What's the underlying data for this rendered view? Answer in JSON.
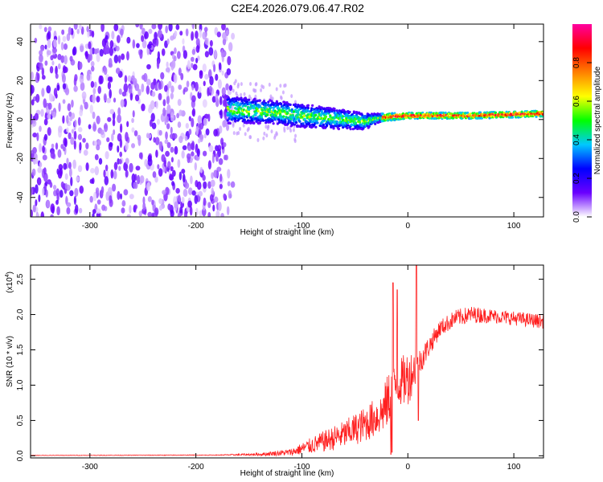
{
  "title": "C2E4.2026.079.06.47.R02",
  "chart_data": [
    {
      "type": "heatmap",
      "name": "spectrogram",
      "title": "C2E4.2026.079.06.47.R02",
      "xlabel": "Height of straight line (km)",
      "ylabel": "Frequency (Hz)",
      "xlim": [
        -356,
        128
      ],
      "ylim": [
        -50,
        49
      ],
      "xticks": [
        -300,
        -200,
        -100,
        0,
        100
      ],
      "yticks": [
        -40,
        -20,
        0,
        20,
        40
      ],
      "description_of_structure": {
        "noise_region_x": [
          -356,
          -165
        ],
        "signal_band": [
          {
            "x": -170,
            "freq": 5,
            "spread": 7
          },
          {
            "x": -130,
            "freq": 4,
            "spread": 6
          },
          {
            "x": -100,
            "freq": 2,
            "spread": 6
          },
          {
            "x": -60,
            "freq": 0,
            "spread": 5
          },
          {
            "x": -40,
            "freq": -1,
            "spread": 4
          },
          {
            "x": -25,
            "freq": 1,
            "spread": 2
          },
          {
            "x": 0,
            "freq": 2,
            "spread": 1.5
          },
          {
            "x": 60,
            "freq": 2,
            "spread": 1.5
          },
          {
            "x": 128,
            "freq": 3,
            "spread": 1.5
          }
        ]
      },
      "colorbar": {
        "label": "Normalized spectral amplitude",
        "range": [
          0.0,
          1.0
        ],
        "ticks": [
          "0.0",
          "0.2",
          "0.4",
          "0.6",
          "0.8"
        ],
        "tick_values": [
          0.0,
          0.2,
          0.4,
          0.6,
          0.8
        ],
        "colors": [
          "#ffffff",
          "#6a00ff",
          "#0000ff",
          "#00c8ff",
          "#00ff00",
          "#ffff00",
          "#ff8000",
          "#ff0000",
          "#ff00a0"
        ]
      }
    },
    {
      "type": "line",
      "name": "snr",
      "xlabel": "Height of straight line (km)",
      "ylabel": "SNR (10 * v/v)",
      "scale_label": "(x10",
      "scale_exponent": "4",
      "scale_suffix": ")",
      "xlim": [
        -356,
        128
      ],
      "ylim": [
        -0.03,
        2.7
      ],
      "xticks": [
        -300,
        -200,
        -100,
        0,
        100
      ],
      "yticks": [
        "0.0",
        "0.5",
        "1.0",
        "1.5",
        "2.0",
        "2.5"
      ],
      "ytick_values": [
        0.0,
        0.5,
        1.0,
        1.5,
        2.0,
        2.5
      ],
      "series_color": "#ff2020",
      "envelope": [
        {
          "x": -356,
          "y": 0.005,
          "noise": 0.003
        },
        {
          "x": -180,
          "y": 0.01,
          "noise": 0.005
        },
        {
          "x": -140,
          "y": 0.02,
          "noise": 0.02
        },
        {
          "x": -110,
          "y": 0.05,
          "noise": 0.05
        },
        {
          "x": -90,
          "y": 0.15,
          "noise": 0.12
        },
        {
          "x": -60,
          "y": 0.3,
          "noise": 0.2
        },
        {
          "x": -40,
          "y": 0.45,
          "noise": 0.25
        },
        {
          "x": -25,
          "y": 0.6,
          "noise": 0.3
        },
        {
          "x": -18,
          "y": 0.8,
          "noise": 0.4
        },
        {
          "x": -12,
          "y": 1.0,
          "noise": 0.3
        },
        {
          "x": 0,
          "y": 1.1,
          "noise": 0.4
        },
        {
          "x": 10,
          "y": 1.3,
          "noise": 0.2
        },
        {
          "x": 20,
          "y": 1.55,
          "noise": 0.15
        },
        {
          "x": 30,
          "y": 1.8,
          "noise": 0.12
        },
        {
          "x": 45,
          "y": 1.95,
          "noise": 0.12
        },
        {
          "x": 60,
          "y": 2.0,
          "noise": 0.12
        },
        {
          "x": 80,
          "y": 1.98,
          "noise": 0.1
        },
        {
          "x": 128,
          "y": 1.9,
          "noise": 0.1
        }
      ],
      "spikes": [
        {
          "x": -14,
          "y": 2.45
        },
        {
          "x": -10,
          "y": 2.35
        },
        {
          "x": 8,
          "y": 2.7
        },
        {
          "x": 10,
          "y": 0.5
        }
      ],
      "dropouts": [
        {
          "x": -16,
          "y": 0.02
        },
        {
          "x": -15,
          "y": 0.05
        }
      ]
    }
  ]
}
